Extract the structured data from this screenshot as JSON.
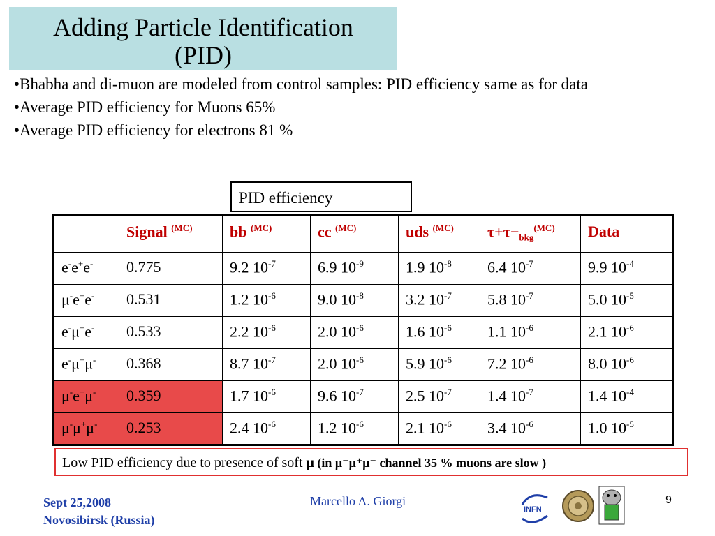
{
  "title": {
    "line1": "Adding Particle Identification",
    "line2": "(PID)"
  },
  "bullets": [
    "•Bhabha and di-muon are modeled from control samples: PID efficiency same as for data",
    "•Average PID efficiency for Muons 65%",
    "•Average PID efficiency for electrons 81 %"
  ],
  "pid_label": "PID efficiency",
  "table": {
    "headers": [
      "Signal",
      "bb",
      "cc",
      "uds",
      "τ+τ−",
      "Data"
    ],
    "mc": "(MC)",
    "bkg": "bkg",
    "rows": [
      {
        "label": [
          "e",
          "-",
          "e",
          "+",
          "e",
          "-"
        ],
        "cells": [
          [
            "0.775",
            ""
          ],
          [
            "9.2 10",
            "-7"
          ],
          [
            "6.9 10",
            "-9"
          ],
          [
            "1.9 10",
            "-8"
          ],
          [
            "6.4 10",
            "-7"
          ],
          [
            "9.9 10",
            "-4"
          ]
        ]
      },
      {
        "label": [
          "μ",
          "-",
          "e",
          "+",
          "e",
          "-"
        ],
        "cells": [
          [
            "0.531",
            ""
          ],
          [
            "1.2 10",
            "-6"
          ],
          [
            "9.0 10",
            "-8"
          ],
          [
            "3.2 10",
            "-7"
          ],
          [
            "5.8 10",
            "-7"
          ],
          [
            "5.0 10",
            "-5"
          ]
        ]
      },
      {
        "label": [
          "e",
          "-",
          "μ",
          "+",
          "e",
          "-"
        ],
        "cells": [
          [
            "0.533",
            ""
          ],
          [
            "2.2 10",
            "-6"
          ],
          [
            "2.0 10",
            "-6"
          ],
          [
            "1.6 10",
            "-6"
          ],
          [
            "1.1 10",
            "-6"
          ],
          [
            "2.1 10",
            "-6"
          ]
        ]
      },
      {
        "label": [
          "e",
          "-",
          "μ",
          "+",
          "μ",
          "-"
        ],
        "cells": [
          [
            "0.368",
            ""
          ],
          [
            "8.7 10",
            "-7"
          ],
          [
            "2.0 10",
            "-6"
          ],
          [
            "5.9 10",
            "-6"
          ],
          [
            "7.2 10",
            "-6"
          ],
          [
            "8.0 10",
            "-6"
          ]
        ]
      },
      {
        "label": [
          "μ",
          "-",
          "e",
          "+",
          "μ",
          "-"
        ],
        "cells": [
          [
            "0.359",
            ""
          ],
          [
            "1.7 10",
            "-6"
          ],
          [
            "9.6 10",
            "-7"
          ],
          [
            "2.5 10",
            "-7"
          ],
          [
            "1.4 10",
            "-7"
          ],
          [
            "1.4 10",
            "-4"
          ]
        ]
      },
      {
        "label": [
          "μ",
          "-",
          "μ",
          "+",
          "μ",
          "-"
        ],
        "cells": [
          [
            "0.253",
            ""
          ],
          [
            "2.4 10",
            "-6"
          ],
          [
            "1.2 10",
            "-6"
          ],
          [
            "2.1 10",
            "-6"
          ],
          [
            "3.4 10",
            "-6"
          ],
          [
            "1.0 10",
            "-5"
          ]
        ]
      }
    ]
  },
  "note": {
    "text": "Low PID efficiency due to presence of soft ",
    "mu": "μ",
    "bold": " (in μ⁻μ⁺μ⁻ channel 35 % muons are slow )"
  },
  "footer": {
    "date": "Sept 25,2008",
    "place": "Novosibirsk (Russia)",
    "author": "Marcello A. Giorgi",
    "page": "9"
  },
  "logos": {
    "infn": "INFN"
  },
  "colors": {
    "title_bg": "#b9dfe2",
    "header_text": "#c00000",
    "highlight": "#e84a4a",
    "footer_blue": "#1f3fa8"
  }
}
